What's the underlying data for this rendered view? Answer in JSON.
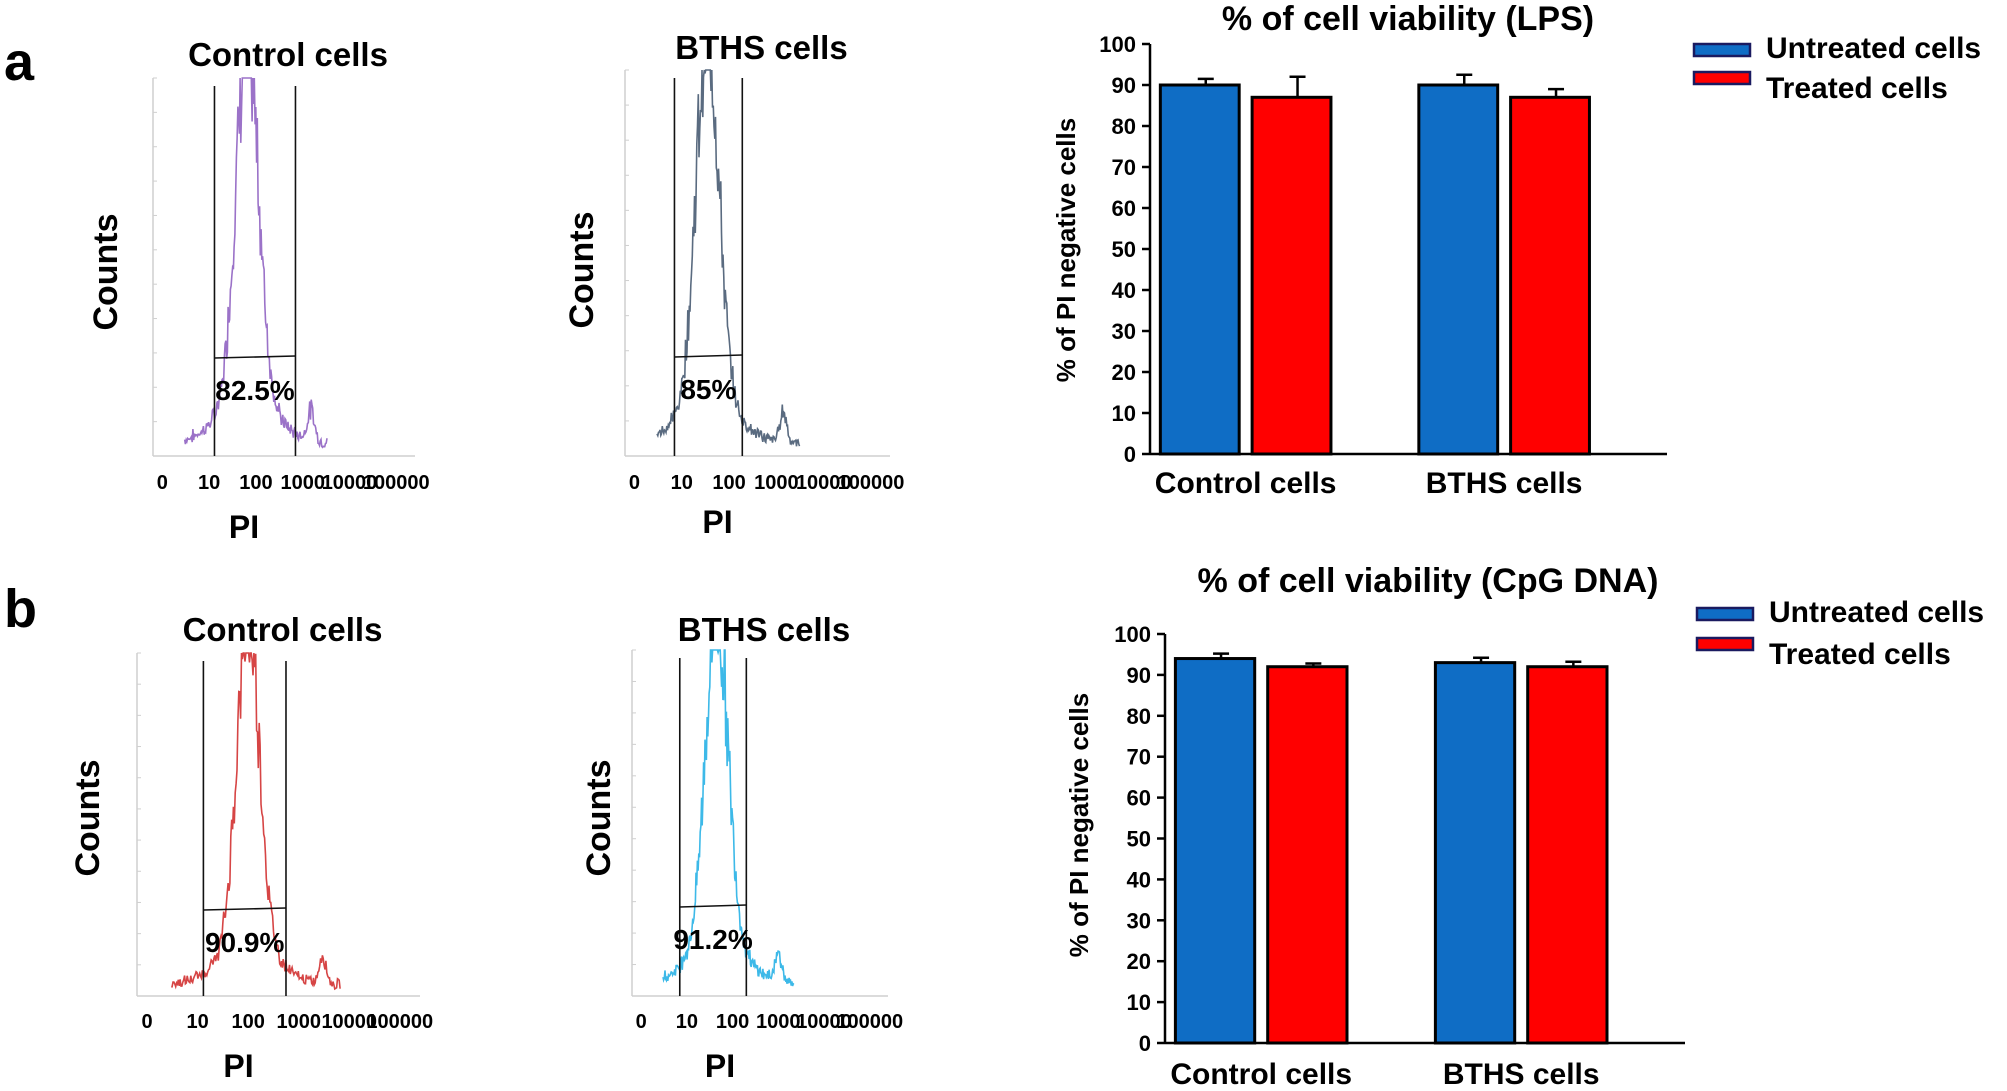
{
  "panels": [
    {
      "letter": "a",
      "histograms": [
        {
          "title": "Control cells",
          "ylabel": "Counts",
          "xlabel": "PI",
          "gate_percent": "82.5%",
          "color": "#9b72c8",
          "gate_from": 13,
          "gate_to": 700,
          "peak_at": 65,
          "secondary_peak_at": 1500,
          "x_ticks": [
            "0",
            "10",
            "100",
            "1000",
            "10000",
            "100000"
          ]
        },
        {
          "title": "BTHS cells",
          "ylabel": "Counts",
          "xlabel": "PI",
          "gate_percent": "85%",
          "color": "#5a6b80",
          "gate_from": 7,
          "gate_to": 190,
          "peak_at": 35,
          "secondary_peak_at": 1400,
          "x_ticks": [
            "0",
            "10",
            "100",
            "1000",
            "10000",
            "100000"
          ]
        }
      ],
      "chart_data": {
        "type": "bar",
        "title": "%  of cell viability (LPS)",
        "ylabel": "% of PI negative cells",
        "xlabel": "",
        "categories": [
          "Control cells",
          "BTHS cells"
        ],
        "series": [
          {
            "name": "Untreated cells",
            "color": "#0f6dc5",
            "values": [
              90,
              90
            ],
            "errors": [
              1.5,
              2.5
            ]
          },
          {
            "name": "Treated cells",
            "color": "#ff0000",
            "values": [
              87,
              87
            ],
            "errors": [
              5,
              2
            ]
          }
        ],
        "ylim": [
          0,
          100
        ],
        "yticks": [
          0,
          10,
          20,
          30,
          40,
          50,
          60,
          70,
          80,
          90,
          100
        ],
        "legend": "top-right",
        "grid": false
      }
    },
    {
      "letter": "b",
      "histograms": [
        {
          "title": "Control cells",
          "ylabel": "Counts",
          "xlabel": "PI",
          "gate_percent": "90.9%",
          "color": "#d64545",
          "gate_from": 13,
          "gate_to": 560,
          "peak_at": 100,
          "secondary_peak_at": 3000,
          "x_ticks": [
            "0",
            "10",
            "100",
            "1000",
            "10000",
            "100000"
          ]
        },
        {
          "title": "BTHS cells",
          "ylabel": "Counts",
          "xlabel": "PI",
          "gate_percent": "91.2%",
          "color": "#3db9e8",
          "gate_from": 7,
          "gate_to": 200,
          "peak_at": 45,
          "secondary_peak_at": 1000,
          "x_ticks": [
            "0",
            "10",
            "100",
            "1000",
            "10000",
            "100000"
          ]
        }
      ],
      "chart_data": {
        "type": "bar",
        "title": "%  of cell viability (CpG DNA)",
        "ylabel": "% of PI negative cells",
        "xlabel": "",
        "categories": [
          "Control cells",
          "BTHS cells"
        ],
        "series": [
          {
            "name": "Untreated cells",
            "color": "#0f6dc5",
            "values": [
              94,
              93
            ],
            "errors": [
              1.2,
              1.2
            ]
          },
          {
            "name": "Treated cells",
            "color": "#ff0000",
            "values": [
              92,
              92
            ],
            "errors": [
              0.8,
              1.2
            ]
          }
        ],
        "ylim": [
          0,
          100
        ],
        "yticks": [
          0,
          10,
          20,
          30,
          40,
          50,
          60,
          70,
          80,
          90,
          100
        ],
        "legend": "top-right",
        "grid": false
      }
    }
  ]
}
